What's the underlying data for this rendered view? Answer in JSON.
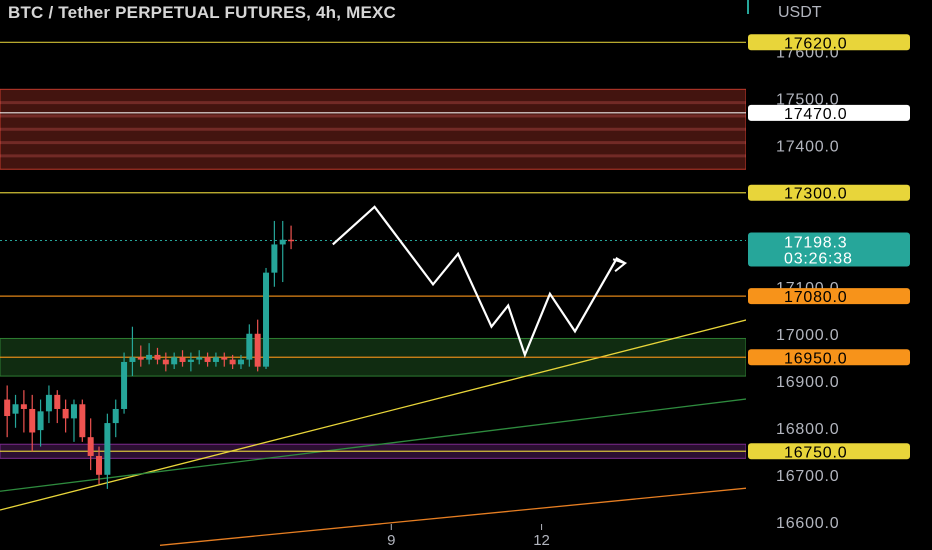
{
  "chart_data": {
    "type": "candlestick",
    "title": "BTC / Tether PERPETUAL FUTURES, 4h, MEXC",
    "currency": "USDT",
    "ylim": [
      16540,
      17710
    ],
    "y_ticks": [
      "17600.0",
      "17500.0",
      "17400.0",
      "17100.0",
      "17000.0",
      "16900.0",
      "16800.0",
      "16700.0",
      "16600.0"
    ],
    "x_ticks": [
      {
        "label": "9",
        "bar": 46
      },
      {
        "label": "12",
        "bar": 64
      }
    ],
    "candles": [
      {
        "o": 16860,
        "h": 16890,
        "l": 16780,
        "c": 16825
      },
      {
        "o": 16830,
        "h": 16870,
        "l": 16800,
        "c": 16850
      },
      {
        "o": 16850,
        "h": 16880,
        "l": 16790,
        "c": 16840
      },
      {
        "o": 16840,
        "h": 16870,
        "l": 16750,
        "c": 16790
      },
      {
        "o": 16795,
        "h": 16860,
        "l": 16760,
        "c": 16835
      },
      {
        "o": 16835,
        "h": 16890,
        "l": 16810,
        "c": 16870
      },
      {
        "o": 16870,
        "h": 16880,
        "l": 16810,
        "c": 16840
      },
      {
        "o": 16840,
        "h": 16860,
        "l": 16790,
        "c": 16820
      },
      {
        "o": 16820,
        "h": 16860,
        "l": 16770,
        "c": 16850
      },
      {
        "o": 16850,
        "h": 16860,
        "l": 16770,
        "c": 16780
      },
      {
        "o": 16780,
        "h": 16820,
        "l": 16710,
        "c": 16740
      },
      {
        "o": 16740,
        "h": 16760,
        "l": 16680,
        "c": 16700
      },
      {
        "o": 16700,
        "h": 16830,
        "l": 16670,
        "c": 16810
      },
      {
        "o": 16810,
        "h": 16860,
        "l": 16780,
        "c": 16840
      },
      {
        "o": 16840,
        "h": 16960,
        "l": 16830,
        "c": 16940
      },
      {
        "o": 16940,
        "h": 17015,
        "l": 16910,
        "c": 16950
      },
      {
        "o": 16950,
        "h": 16975,
        "l": 16930,
        "c": 16945
      },
      {
        "o": 16945,
        "h": 16980,
        "l": 16935,
        "c": 16955
      },
      {
        "o": 16955,
        "h": 16970,
        "l": 16935,
        "c": 16945
      },
      {
        "o": 16945,
        "h": 16960,
        "l": 16920,
        "c": 16935
      },
      {
        "o": 16935,
        "h": 16960,
        "l": 16925,
        "c": 16950
      },
      {
        "o": 16950,
        "h": 16965,
        "l": 16930,
        "c": 16940
      },
      {
        "o": 16940,
        "h": 16960,
        "l": 16920,
        "c": 16945
      },
      {
        "o": 16945,
        "h": 16965,
        "l": 16935,
        "c": 16950
      },
      {
        "o": 16950,
        "h": 16960,
        "l": 16930,
        "c": 16940
      },
      {
        "o": 16940,
        "h": 16960,
        "l": 16930,
        "c": 16950
      },
      {
        "o": 16950,
        "h": 16960,
        "l": 16930,
        "c": 16945
      },
      {
        "o": 16945,
        "h": 16955,
        "l": 16925,
        "c": 16935
      },
      {
        "o": 16935,
        "h": 16955,
        "l": 16925,
        "c": 16945
      },
      {
        "o": 16945,
        "h": 17020,
        "l": 16930,
        "c": 17000
      },
      {
        "o": 17000,
        "h": 17030,
        "l": 16920,
        "c": 16930
      },
      {
        "o": 16930,
        "h": 17140,
        "l": 16925,
        "c": 17130
      },
      {
        "o": 17130,
        "h": 17240,
        "l": 17100,
        "c": 17190
      },
      {
        "o": 17190,
        "h": 17240,
        "l": 17110,
        "c": 17200
      },
      {
        "o": 17200,
        "h": 17230,
        "l": 17180,
        "c": 17198.3
      }
    ],
    "horizontal_levels": [
      {
        "price": 17620,
        "label": "17620.0",
        "color": "#e8d53a",
        "text_color": "#000000"
      },
      {
        "price": 17300,
        "label": "17300.0",
        "color": "#e8d53a",
        "text_color": "#000000"
      },
      {
        "price": 17080,
        "label": "17080.0",
        "color": "#f7931a",
        "text_color": "#000000"
      },
      {
        "price": 16950,
        "label": "16950.0",
        "color": "#f7931a",
        "text_color": "#000000"
      },
      {
        "price": 16750,
        "label": "16750.0",
        "color": "#e8d53a",
        "text_color": "#000000"
      },
      {
        "price": 17470,
        "label": "17470.0",
        "color": "#ffffff",
        "text_color": "#000000"
      }
    ],
    "current_price": {
      "price": 17198.3,
      "label": "17198.3",
      "countdown": "03:26:38",
      "color": "#26a69a"
    },
    "zones": [
      {
        "from": 17350,
        "to": 17520,
        "color": "#c0392b"
      },
      {
        "from": 16910,
        "to": 16990,
        "color": "#2e7d32"
      },
      {
        "from": 16735,
        "to": 16765,
        "color": "#7b2a8e"
      }
    ],
    "projection_path": [
      [
        17190,
        39
      ],
      [
        17270,
        44
      ],
      [
        17105,
        51
      ],
      [
        17170,
        54
      ],
      [
        17015,
        58
      ],
      [
        17060,
        60
      ],
      [
        16955,
        62
      ],
      [
        17085,
        65
      ],
      [
        17005,
        68
      ],
      [
        17160,
        73
      ],
      [
        17150,
        74
      ]
    ],
    "trend_lines": [
      {
        "color": "#e8d53a",
        "from": [
          0,
          16625
        ],
        "to": [
          932,
          17130
        ]
      },
      {
        "color": "#2e8b3e",
        "from": [
          0,
          16665
        ],
        "to": [
          932,
          16910
        ]
      },
      {
        "color": "#e67e22",
        "from": [
          160,
          16550
        ],
        "to": [
          932,
          16710
        ]
      }
    ],
    "up_color": "#26a69a",
    "down_color": "#ef5350"
  }
}
